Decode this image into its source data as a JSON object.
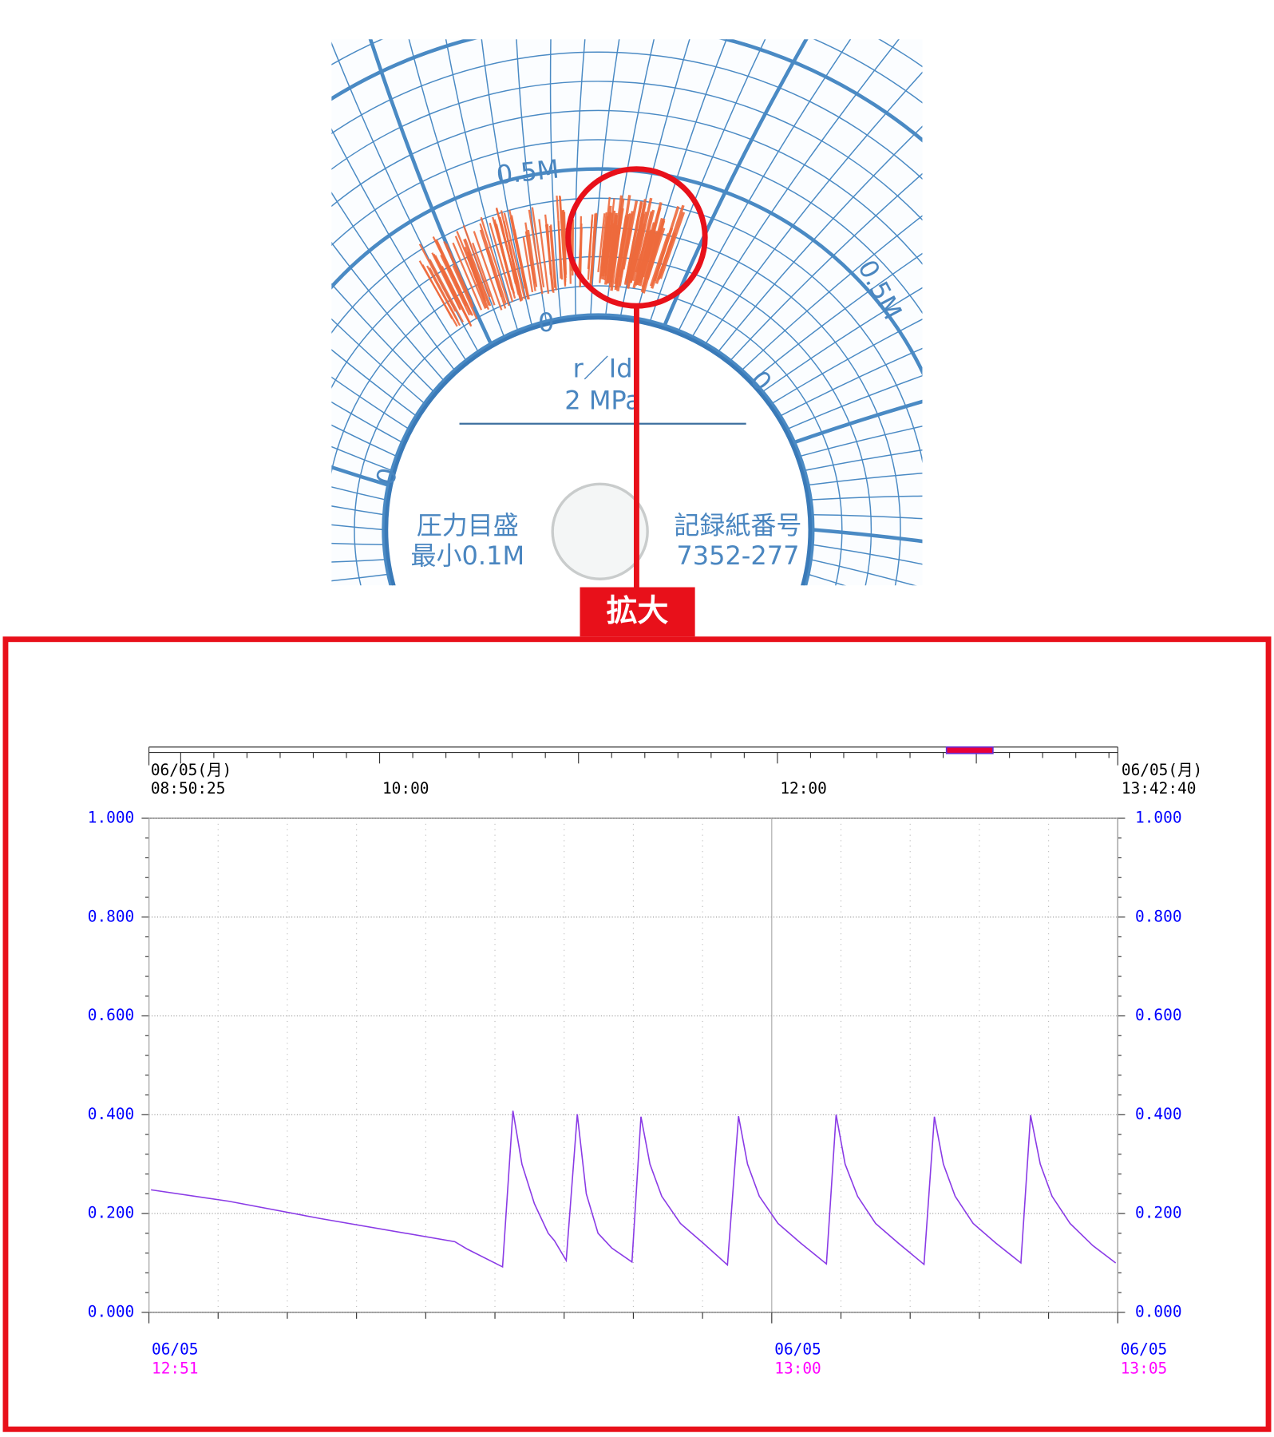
{
  "figure": {
    "labels": [
      "0.5M",
      "0",
      "0.5M",
      "0",
      "0",
      "r／Id",
      "2 MPa",
      "圧力目盛",
      "最小0.1M",
      "記録紙番号",
      "7352-277"
    ],
    "badge": "拡大"
  },
  "overview": {
    "xlim": [
      530.4167,
      822.6667
    ],
    "start": {
      "date": "06/05(月)",
      "time": "08:50:25"
    },
    "end": {
      "date": "06/05(月)",
      "time": "13:42:40"
    },
    "xticks": [
      {
        "value": 600,
        "label": "10:00"
      },
      {
        "value": 720,
        "label": "12:00"
      }
    ],
    "minor_ticks": [
      540,
      550,
      560,
      570,
      580,
      590,
      600,
      610,
      620,
      630,
      640,
      650,
      660,
      670,
      680,
      690,
      700,
      710,
      720,
      730,
      740,
      750,
      760,
      770,
      780,
      790,
      800,
      810,
      820
    ],
    "window": [
      771,
      785
    ],
    "window_color": "#e8003a"
  },
  "chart_data": {
    "type": "line",
    "color": "#8a3be6",
    "x": [
      771.03,
      772.15,
      773.47,
      775.42,
      775.6,
      776.11,
      776.26,
      776.39,
      776.57,
      776.77,
      776.86,
      777.03,
      777.19,
      777.32,
      777.49,
      777.69,
      777.98,
      778.11,
      778.24,
      778.41,
      778.68,
      779.01,
      779.36,
      779.52,
      779.65,
      779.82,
      780.09,
      780.42,
      780.79,
      780.93,
      781.06,
      781.24,
      781.5,
      781.83,
      782.2,
      782.35,
      782.48,
      782.65,
      782.91,
      783.24,
      783.6,
      783.74,
      783.88,
      784.05,
      784.31,
      784.64,
      784.97
    ],
    "values": [
      0.248,
      0.225,
      0.19,
      0.143,
      0.128,
      0.092,
      0.408,
      0.3,
      0.22,
      0.16,
      0.145,
      0.105,
      0.401,
      0.24,
      0.16,
      0.13,
      0.102,
      0.396,
      0.3,
      0.235,
      0.18,
      0.14,
      0.096,
      0.397,
      0.3,
      0.235,
      0.18,
      0.14,
      0.098,
      0.4,
      0.3,
      0.235,
      0.18,
      0.14,
      0.097,
      0.396,
      0.3,
      0.235,
      0.18,
      0.14,
      0.1,
      0.399,
      0.3,
      0.235,
      0.18,
      0.135,
      0.1
    ],
    "xlim": [
      771,
      785
    ],
    "xticks": [
      771,
      772,
      773,
      774,
      775,
      776,
      777,
      778,
      779,
      780,
      781,
      782,
      783,
      784,
      785
    ],
    "xlabels": [
      {
        "value": 771,
        "label": "12:51",
        "date": "06/05"
      },
      {
        "value": 780,
        "label": "13:00",
        "date": "06/05"
      },
      {
        "value": 785,
        "label": "13:05",
        "date": "06/05"
      }
    ],
    "ylim": [
      0,
      1
    ],
    "yticks": [
      {
        "value": 0,
        "label": "0.000"
      },
      {
        "value": 0.2,
        "label": "0.200"
      },
      {
        "value": 0.4,
        "label": "0.400"
      },
      {
        "value": 0.6,
        "label": "0.600"
      },
      {
        "value": 0.8,
        "label": "0.800"
      },
      {
        "value": 1,
        "label": "1.000"
      }
    ],
    "yminor": [
      0.04,
      0.08,
      0.12,
      0.16,
      0.24,
      0.28,
      0.32,
      0.36,
      0.44,
      0.48,
      0.52,
      0.56,
      0.64,
      0.68,
      0.72,
      0.76,
      0.84,
      0.88,
      0.92,
      0.96
    ],
    "grid": true
  }
}
